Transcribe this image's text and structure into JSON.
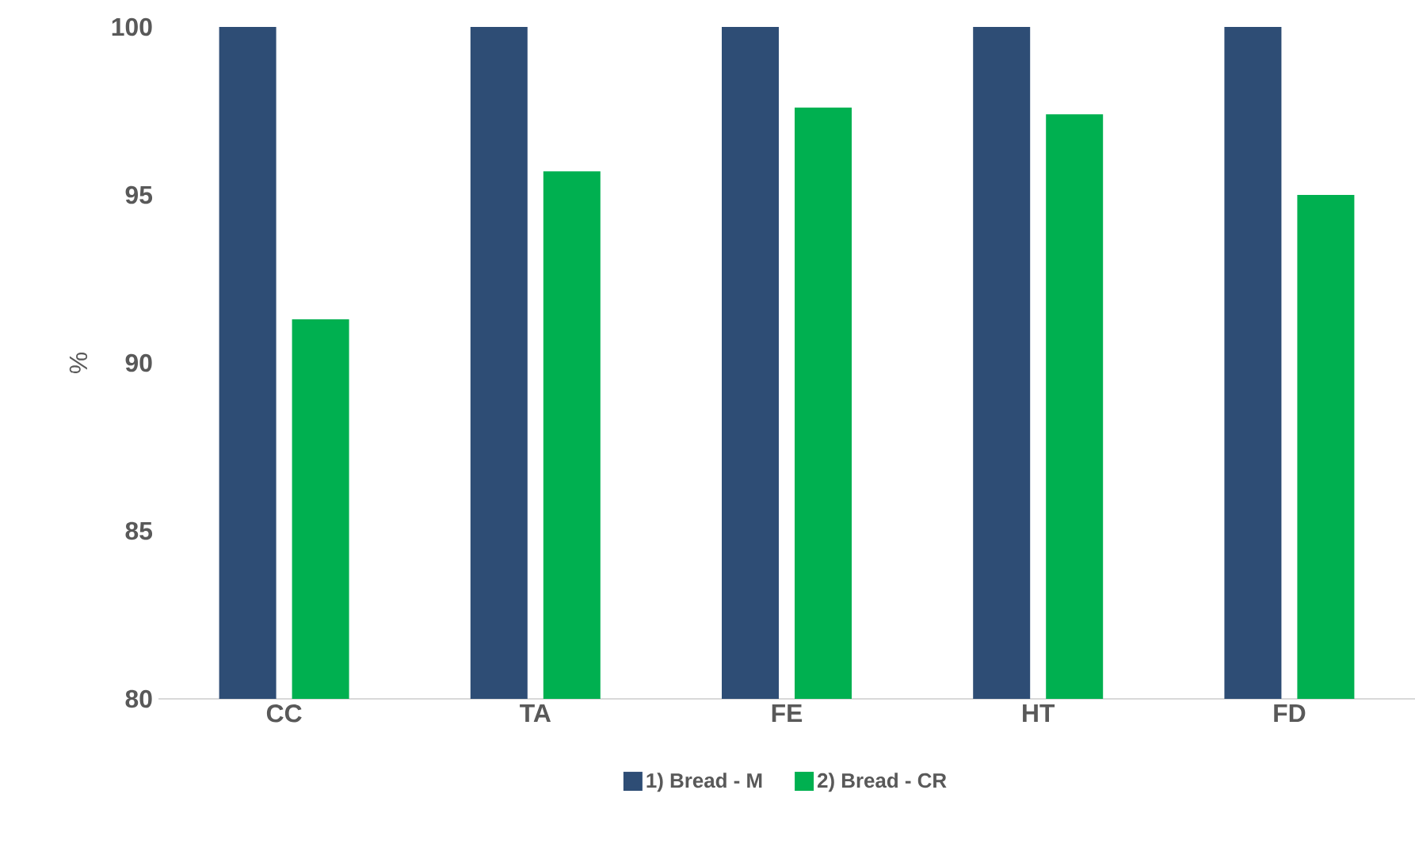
{
  "chart_data": {
    "type": "bar",
    "ylabel": "%",
    "categories": [
      "CC",
      "TA",
      "FE",
      "HT",
      "FD"
    ],
    "series": [
      {
        "name": "1) Bread - M",
        "color": "#2e4d75",
        "values": [
          100,
          100,
          100,
          100,
          100
        ]
      },
      {
        "name": "2) Bread - CR",
        "color": "#00b050",
        "values": [
          91.3,
          95.7,
          97.6,
          97.4,
          95.0
        ]
      }
    ],
    "ylim": [
      80,
      100
    ],
    "yticks": [
      80,
      85,
      90,
      95,
      100
    ],
    "legend": "bottom"
  }
}
